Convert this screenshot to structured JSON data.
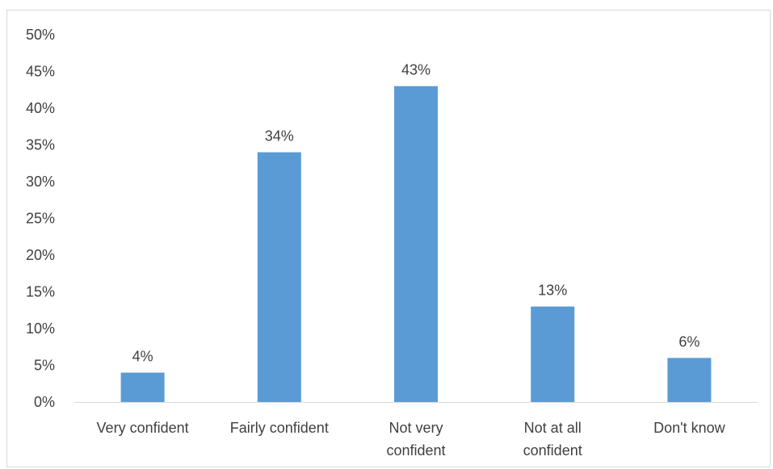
{
  "chart_data": {
    "type": "bar",
    "categories": [
      [
        "Very confident"
      ],
      [
        "Fairly confident"
      ],
      [
        "Not very",
        "confident"
      ],
      [
        "Not at all",
        "confident"
      ],
      [
        "Don't know"
      ]
    ],
    "values": [
      4,
      34,
      43,
      13,
      6
    ],
    "data_labels": [
      "4%",
      "34%",
      "43%",
      "13%",
      "6%"
    ],
    "y_ticks": [
      0,
      5,
      10,
      15,
      20,
      25,
      30,
      35,
      40,
      45,
      50
    ],
    "y_tick_labels": [
      "0%",
      "5%",
      "10%",
      "15%",
      "20%",
      "25%",
      "30%",
      "35%",
      "40%",
      "45%",
      "50%"
    ],
    "ylim": [
      0,
      50
    ],
    "grid": false,
    "legend": "none",
    "title": "",
    "xlabel": "",
    "ylabel": "",
    "colors": {
      "bar": "#5b9bd5",
      "axis": "#d9d9d9",
      "text": "#404040"
    }
  }
}
